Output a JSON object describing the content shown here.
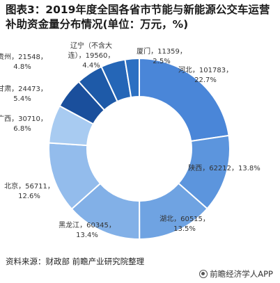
{
  "title": "图表3：2019年度全国各省市节能与新能源公交车运营补助资金量分布情况(单位：万元，%)",
  "source": "资料来源：财政部 前瞻产业研究院整理",
  "brand": "前瞻经济学人APP",
  "chart_data": {
    "type": "pie",
    "donut": true,
    "title": "2019年度全国各省市节能与新能源公交车运营补助资金量分布情况(单位：万元，%)",
    "slices": [
      {
        "label": "河北",
        "value": 101783,
        "pct": "22.7%",
        "color": "#4a86d8"
      },
      {
        "label": "陕西",
        "value": 62212,
        "pct": "13.8%",
        "color": "#5c95dd"
      },
      {
        "label": "湖北",
        "value": 60515,
        "pct": "13.5%",
        "color": "#6fa3e2"
      },
      {
        "label": "黑龙江",
        "value": 60345,
        "pct": "13.4%",
        "color": "#82b0e7"
      },
      {
        "label": "北京",
        "value": 56711,
        "pct": "12.6%",
        "color": "#93bcec"
      },
      {
        "label": "广西",
        "value": 30710,
        "pct": "6.8%",
        "color": "#a8cbf1"
      },
      {
        "label": "甘肃",
        "value": 24473,
        "pct": "5.4%",
        "color": "#1a4f9c"
      },
      {
        "label": "贵州",
        "value": 21548,
        "pct": "4.8%",
        "color": "#1e5aa8"
      },
      {
        "label": "辽宁（不含大连）",
        "value": 19560,
        "pct": "4.4%",
        "color": "#2566b7"
      },
      {
        "label": "厦门",
        "value": 11359,
        "pct": "2.5%",
        "color": "#2c70c2"
      }
    ]
  }
}
